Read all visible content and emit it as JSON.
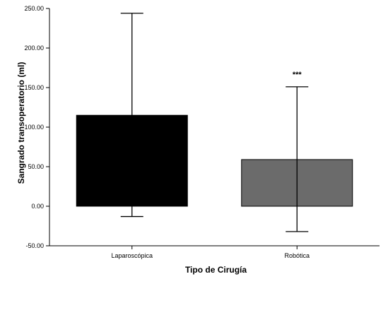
{
  "chart_data": {
    "type": "bar",
    "categories": [
      "Laparoscópica",
      "Robótica"
    ],
    "values": [
      115,
      59
    ],
    "error_bars": [
      {
        "low": -13,
        "high": 244
      },
      {
        "low": -32,
        "high": 151
      }
    ],
    "annotations": [
      "",
      "***"
    ],
    "xlabel": "Tipo de Cirugía",
    "ylabel": "Sangrado transoperatorio (ml)",
    "ylim": [
      -50,
      250
    ],
    "yticks": [
      -50,
      0,
      50,
      100,
      150,
      200,
      250
    ],
    "ytick_labels": [
      "-50.00",
      "0.00",
      "50.00",
      "100.00",
      "150.00",
      "200.00",
      "250.00"
    ],
    "bar_colors": [
      "#000000",
      "#6b6b6b"
    ],
    "grid": false
  }
}
